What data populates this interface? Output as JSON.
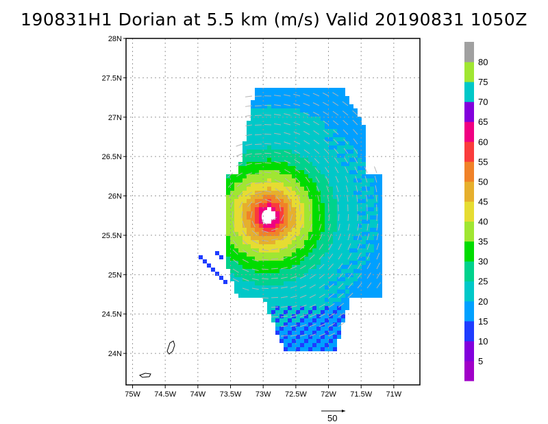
{
  "title": "190831H1 Dorian at 5.5 km (m/s) Valid 20190831  1050Z",
  "map": {
    "lon_ticks": [
      "75W",
      "74.5W",
      "74W",
      "73.5W",
      "73W",
      "72.5W",
      "72W",
      "71.5W",
      "71W"
    ],
    "lat_ticks": [
      "28N",
      "27.5N",
      "27N",
      "26.5N",
      "26N",
      "25.5N",
      "25N",
      "24.5N",
      "24N"
    ],
    "lon_range": [
      -75.1,
      -70.6
    ],
    "lat_range": [
      23.6,
      28.0
    ],
    "grid": true,
    "storm_center": {
      "lon": -72.95,
      "lat": 25.77
    },
    "reference_vector": {
      "label": "50",
      "units": "m/s"
    }
  },
  "colorbar": {
    "labels": [
      "5",
      "10",
      "15",
      "20",
      "25",
      "30",
      "35",
      "40",
      "45",
      "50",
      "55",
      "60",
      "65",
      "70",
      "75",
      "80"
    ],
    "colors": [
      "#a000c8",
      "#8200dc",
      "#1e3cff",
      "#00a0ff",
      "#00c8c8",
      "#00d28c",
      "#00dc00",
      "#a0e632",
      "#e6dc32",
      "#e6af2d",
      "#f08228",
      "#fa3c3c",
      "#f00082",
      "#8200dc",
      "#00c8c8",
      "#a0e632",
      "#a0a0a0"
    ]
  },
  "colors": {
    "vector": "#b4b4b4",
    "coast": "#000000",
    "grid": "#999999"
  }
}
